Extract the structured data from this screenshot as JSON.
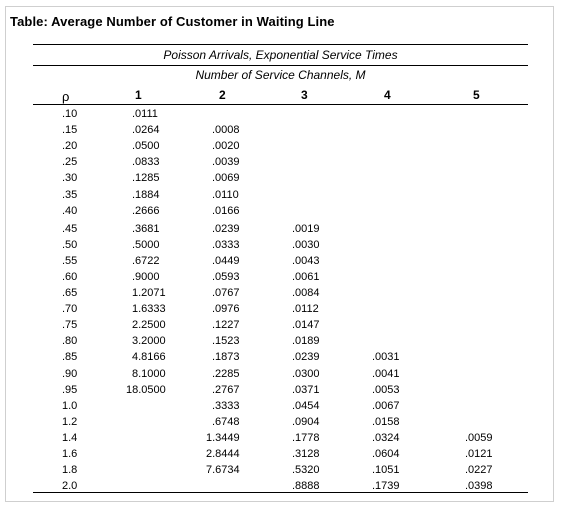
{
  "title": "Table: Average Number of Customer in Waiting Line",
  "subtitle1": "Poisson Arrivals, Exponential Service Times",
  "subtitle2": "Number of Service Channels, M",
  "rho_header": "ρ",
  "columns": [
    "1",
    "2",
    "3",
    "4",
    "5"
  ],
  "rows": [
    {
      "rho": ".10",
      "v": [
        ".0111",
        "",
        "",
        "",
        ""
      ]
    },
    {
      "rho": ".15",
      "v": [
        ".0264",
        ".0008",
        "",
        "",
        ""
      ]
    },
    {
      "rho": ".20",
      "v": [
        ".0500",
        ".0020",
        "",
        "",
        ""
      ]
    },
    {
      "rho": ".25",
      "v": [
        ".0833",
        ".0039",
        "",
        "",
        ""
      ]
    },
    {
      "rho": ".30",
      "v": [
        ".1285",
        ".0069",
        "",
        "",
        ""
      ]
    },
    {
      "rho": ".35",
      "v": [
        ".1884",
        ".0110",
        "",
        "",
        ""
      ]
    },
    {
      "rho": ".40",
      "v": [
        ".2666",
        ".0166",
        "",
        "",
        ""
      ]
    },
    {
      "rho": ".45",
      "v": [
        ".3681",
        ".0239",
        ".0019",
        "",
        ""
      ]
    },
    {
      "rho": ".50",
      "v": [
        ".5000",
        ".0333",
        ".0030",
        "",
        ""
      ]
    },
    {
      "rho": ".55",
      "v": [
        ".6722",
        ".0449",
        ".0043",
        "",
        ""
      ]
    },
    {
      "rho": ".60",
      "v": [
        ".9000",
        ".0593",
        ".0061",
        "",
        ""
      ]
    },
    {
      "rho": ".65",
      "v": [
        "1.2071",
        ".0767",
        ".0084",
        "",
        ""
      ]
    },
    {
      "rho": ".70",
      "v": [
        "1.6333",
        ".0976",
        ".0112",
        "",
        ""
      ]
    },
    {
      "rho": ".75",
      "v": [
        "2.2500",
        ".1227",
        ".0147",
        "",
        ""
      ]
    },
    {
      "rho": ".80",
      "v": [
        "3.2000",
        ".1523",
        ".0189",
        "",
        ""
      ]
    },
    {
      "rho": ".85",
      "v": [
        "4.8166",
        ".1873",
        ".0239",
        ".0031",
        ""
      ]
    },
    {
      "rho": ".90",
      "v": [
        "8.1000",
        ".2285",
        ".0300",
        ".0041",
        ""
      ]
    },
    {
      "rho": ".95",
      "v": [
        "18.0500",
        ".2767",
        ".0371",
        ".0053",
        ""
      ]
    },
    {
      "rho": "1.0",
      "v": [
        "",
        ".3333",
        ".0454",
        ".0067",
        ""
      ]
    },
    {
      "rho": "1.2",
      "v": [
        "",
        ".6748",
        ".0904",
        ".0158",
        ""
      ]
    },
    {
      "rho": "1.4",
      "v": [
        "",
        "1.3449",
        ".1778",
        ".0324",
        ".0059"
      ]
    },
    {
      "rho": "1.6",
      "v": [
        "",
        "2.8444",
        ".3128",
        ".0604",
        ".0121"
      ]
    },
    {
      "rho": "1.8",
      "v": [
        "",
        "7.6734",
        ".5320",
        ".1051",
        ".0227"
      ]
    },
    {
      "rho": "2.0",
      "v": [
        "",
        "",
        ".8888",
        ".1739",
        ".0398"
      ]
    }
  ]
}
